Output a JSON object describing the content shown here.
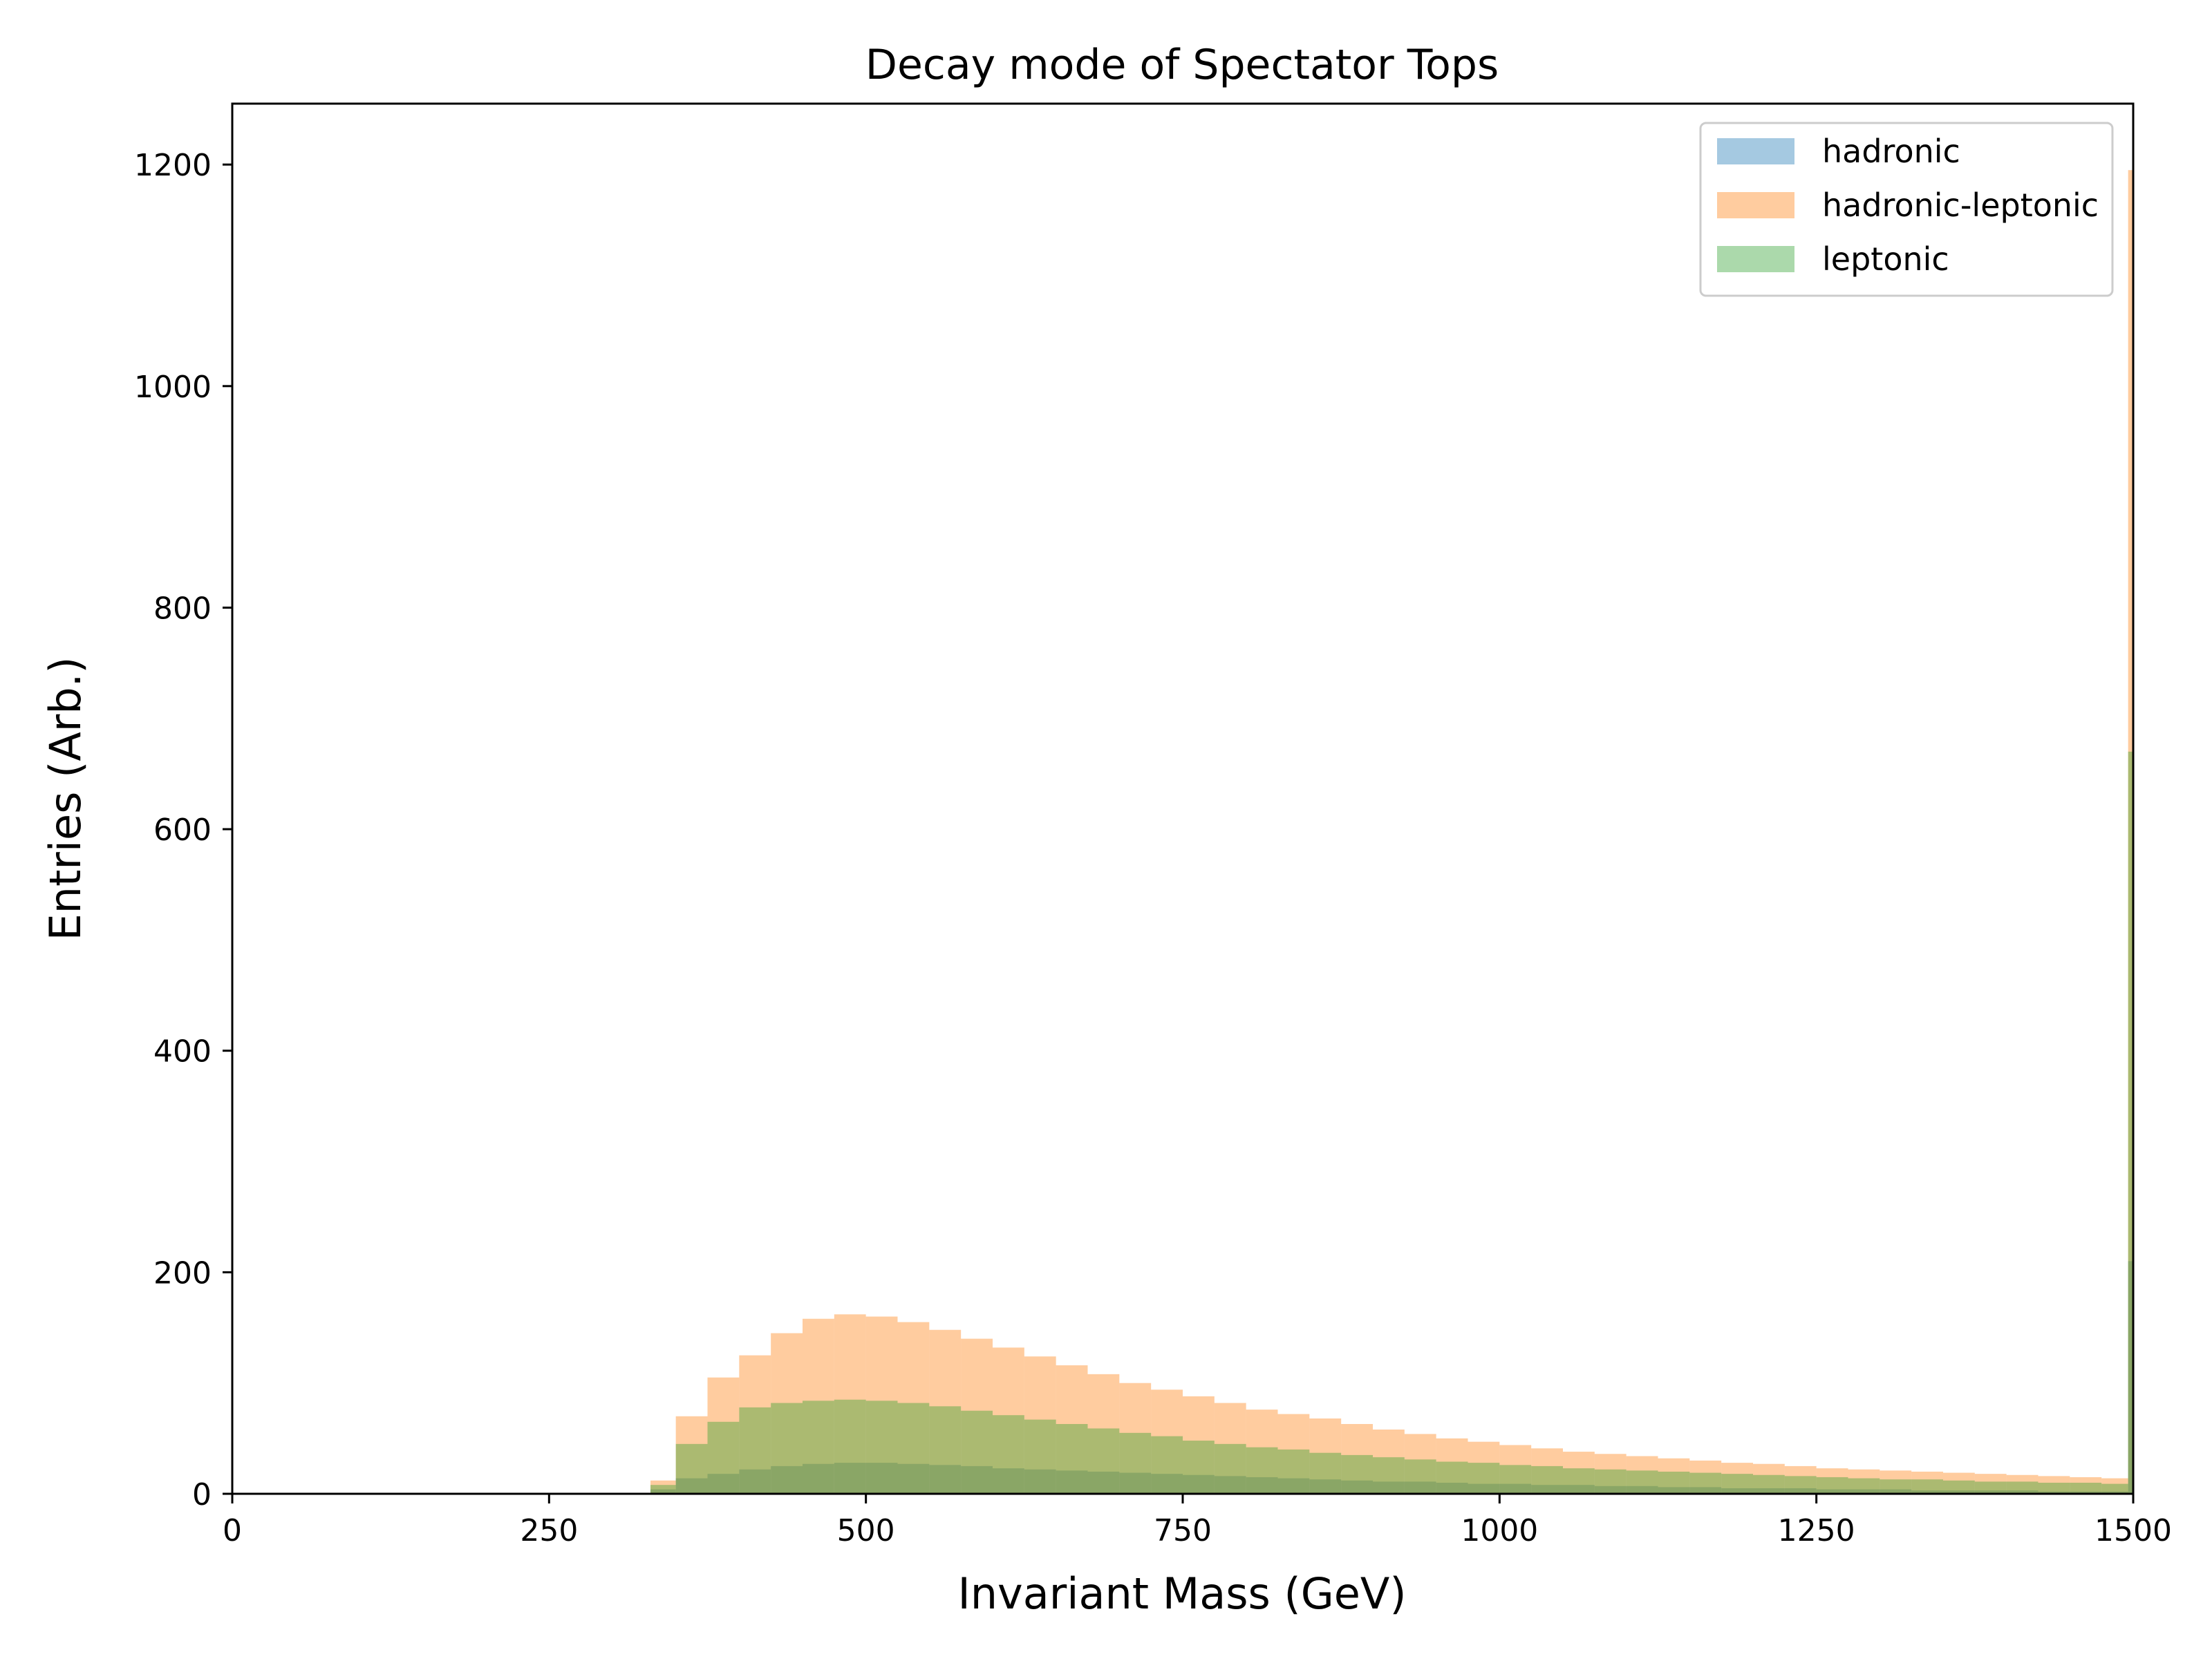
{
  "chart_data": {
    "type": "histogram",
    "title": "Decay mode of Spectator Tops",
    "xlabel": "Invariant Mass (GeV)",
    "ylabel": "Entries (Arb.)",
    "xlim": [
      0,
      1500
    ],
    "ylim": [
      0,
      1255
    ],
    "xticks": [
      0,
      250,
      500,
      750,
      1000,
      1250,
      1500
    ],
    "yticks": [
      0,
      200,
      400,
      600,
      800,
      1000,
      1200
    ],
    "xtick_labels": [
      "0",
      "250",
      "500",
      "750",
      "1000",
      "1250",
      "1500"
    ],
    "ytick_labels": [
      "0",
      "200",
      "400",
      "600",
      "800",
      "1000",
      "1200"
    ],
    "grid": false,
    "legend_position": "top-right",
    "bin_edges": [
      330,
      350,
      375,
      400,
      425,
      450,
      475,
      500,
      525,
      550,
      575,
      600,
      625,
      650,
      675,
      700,
      725,
      750,
      775,
      800,
      825,
      850,
      875,
      900,
      925,
      950,
      975,
      1000,
      1025,
      1050,
      1075,
      1100,
      1125,
      1150,
      1175,
      1200,
      1225,
      1250,
      1275,
      1300,
      1325,
      1350,
      1375,
      1400,
      1425,
      1450,
      1475,
      1496,
      1500
    ],
    "series": [
      {
        "name": "hadronic",
        "color": "#1f77b4",
        "opacity": 0.4,
        "values": [
          4,
          14,
          18,
          22,
          25,
          27,
          28,
          28,
          27,
          26,
          25,
          23,
          22,
          21,
          20,
          19,
          18,
          17,
          16,
          15,
          14,
          13,
          12,
          11,
          11,
          10,
          9,
          9,
          8,
          8,
          7,
          7,
          6,
          6,
          5,
          5,
          5,
          4,
          4,
          4,
          3,
          3,
          3,
          3,
          2,
          2,
          2,
          210
        ]
      },
      {
        "name": "hadronic-leptonic",
        "color": "#ff7f0e",
        "opacity": 0.4,
        "values": [
          12,
          70,
          105,
          125,
          145,
          158,
          162,
          160,
          155,
          148,
          140,
          132,
          124,
          116,
          108,
          100,
          94,
          88,
          82,
          76,
          72,
          68,
          63,
          58,
          54,
          50,
          47,
          44,
          41,
          38,
          36,
          34,
          32,
          30,
          28,
          27,
          25,
          23,
          22,
          21,
          20,
          19,
          18,
          17,
          16,
          15,
          14,
          1195
        ]
      },
      {
        "name": "leptonic",
        "color": "#2ca02c",
        "opacity": 0.4,
        "values": [
          8,
          45,
          65,
          78,
          82,
          84,
          85,
          84,
          82,
          79,
          75,
          71,
          67,
          63,
          59,
          55,
          52,
          48,
          45,
          42,
          40,
          37,
          35,
          33,
          31,
          29,
          28,
          26,
          25,
          23,
          22,
          21,
          20,
          19,
          18,
          17,
          16,
          15,
          14,
          13,
          13,
          12,
          11,
          11,
          10,
          10,
          9,
          670
        ]
      }
    ]
  }
}
